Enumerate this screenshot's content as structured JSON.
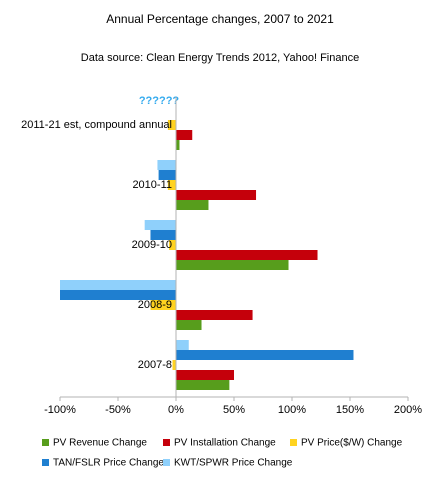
{
  "chart_data": {
    "type": "hbar",
    "title": "Annual Percentage changes, 2007 to 2021",
    "subtitle": "Data source: Clean Energy Trends 2012, Yahoo! Finance",
    "annotation": "??????",
    "categories": [
      "2011-21 est, compound annual",
      "2010-11",
      "2009-10",
      "2008-9",
      "2007-8"
    ],
    "series": [
      {
        "name": "KWT/SPWR Price Change",
        "color": "#8fd0fb",
        "values": [
          null,
          -16,
          -27,
          -100,
          11
        ]
      },
      {
        "name": "TAN/FSLR Price Change",
        "color": "#1f7fd0",
        "values": [
          null,
          -15,
          -22,
          -100,
          153
        ]
      },
      {
        "name": "PV Price($/W) Change",
        "color": "#ffd320",
        "values": [
          -7,
          -7,
          -6,
          -22,
          -3
        ]
      },
      {
        "name": "PV Installation Change",
        "color": "#c5000b",
        "values": [
          14,
          69,
          122,
          66,
          50
        ]
      },
      {
        "name": "PV Revenue Change",
        "color": "#579d1c",
        "values": [
          3,
          28,
          97,
          22,
          46
        ]
      }
    ],
    "xlim": [
      -100,
      200
    ],
    "xticks": [
      {
        "value": -100,
        "label": "-100%"
      },
      {
        "value": -50,
        "label": "-50%"
      },
      {
        "value": 0,
        "label": "0%"
      },
      {
        "value": 50,
        "label": "50%"
      },
      {
        "value": 100,
        "label": "100%"
      },
      {
        "value": 150,
        "label": "150%"
      },
      {
        "value": 200,
        "label": "200%"
      }
    ]
  }
}
